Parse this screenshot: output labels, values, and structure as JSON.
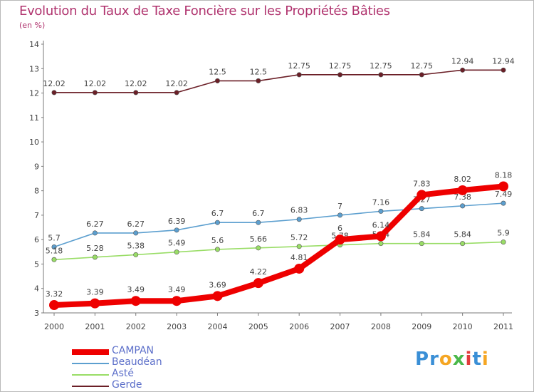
{
  "chart_data": {
    "type": "line",
    "title": "Evolution du Taux de Taxe Foncière sur les Propriétés Bâties",
    "subtitle": "(en %)",
    "xlabel": "",
    "ylabel": "",
    "categories": [
      "2000",
      "2001",
      "2002",
      "2003",
      "2004",
      "2005",
      "2006",
      "2007",
      "2008",
      "2009",
      "2010",
      "2011"
    ],
    "ylim": [
      3,
      14
    ],
    "yticks": [
      3,
      4,
      5,
      6,
      7,
      8,
      9,
      10,
      11,
      12,
      13,
      14
    ],
    "grid": false,
    "legend_position": "bottom-left",
    "series": [
      {
        "name": "Gerde",
        "color": "#6b1f27",
        "values": [
          12.02,
          12.02,
          12.02,
          12.02,
          12.5,
          12.5,
          12.75,
          12.75,
          12.75,
          12.75,
          12.94,
          12.94
        ],
        "labels": [
          "12.02",
          "12.02",
          "12.02",
          "12.02",
          "12.5",
          "12.5",
          "12.75",
          "12.75",
          "12.75",
          "12.75",
          "12.94",
          "12.94"
        ]
      },
      {
        "name": "Beaudéan",
        "color": "#5c9fcf",
        "values": [
          5.7,
          6.27,
          6.27,
          6.39,
          6.7,
          6.7,
          6.83,
          7,
          7.16,
          7.27,
          7.38,
          7.49
        ],
        "labels": [
          "5.7",
          "6.27",
          "6.27",
          "6.39",
          "6.7",
          "6.7",
          "6.83",
          "7",
          "7.16",
          "7.27",
          "7.38",
          "7.49"
        ]
      },
      {
        "name": "Asté",
        "color": "#99dd66",
        "values": [
          5.18,
          5.28,
          5.38,
          5.49,
          5.6,
          5.66,
          5.72,
          5.78,
          5.84,
          5.84,
          5.84,
          5.9
        ],
        "labels": [
          "5.18",
          "5.28",
          "5.38",
          "5.49",
          "5.6",
          "5.66",
          "5.72",
          "5.78",
          "5.84",
          "5.84",
          "5.84",
          "5.9"
        ]
      },
      {
        "name": "CAMPAN",
        "color": "#ee0000",
        "values": [
          3.32,
          3.39,
          3.49,
          3.49,
          3.69,
          4.22,
          4.81,
          6,
          6.14,
          7.83,
          8.02,
          8.18
        ],
        "labels": [
          "3.32",
          "3.39",
          "3.49",
          "3.49",
          "3.69",
          "4.22",
          "4.81",
          "6",
          "6.14",
          "7.83",
          "8.02",
          "8.18"
        ]
      }
    ]
  },
  "legend": {
    "items": [
      {
        "name": "CAMPAN",
        "color": "#ee0000"
      },
      {
        "name": "Beaudéan",
        "color": "#5c9fcf"
      },
      {
        "name": "Asté",
        "color": "#99dd66"
      },
      {
        "name": "Gerde",
        "color": "#6b1f27"
      }
    ]
  },
  "brand": {
    "letters": [
      "P",
      "r",
      "o",
      "x",
      "i",
      "t",
      "i"
    ],
    "colors": [
      "#3a8fd6",
      "#3a8fd6",
      "#f5a623",
      "#4ab84a",
      "#e23c3c",
      "#3a8fd6",
      "#f5a623"
    ]
  }
}
